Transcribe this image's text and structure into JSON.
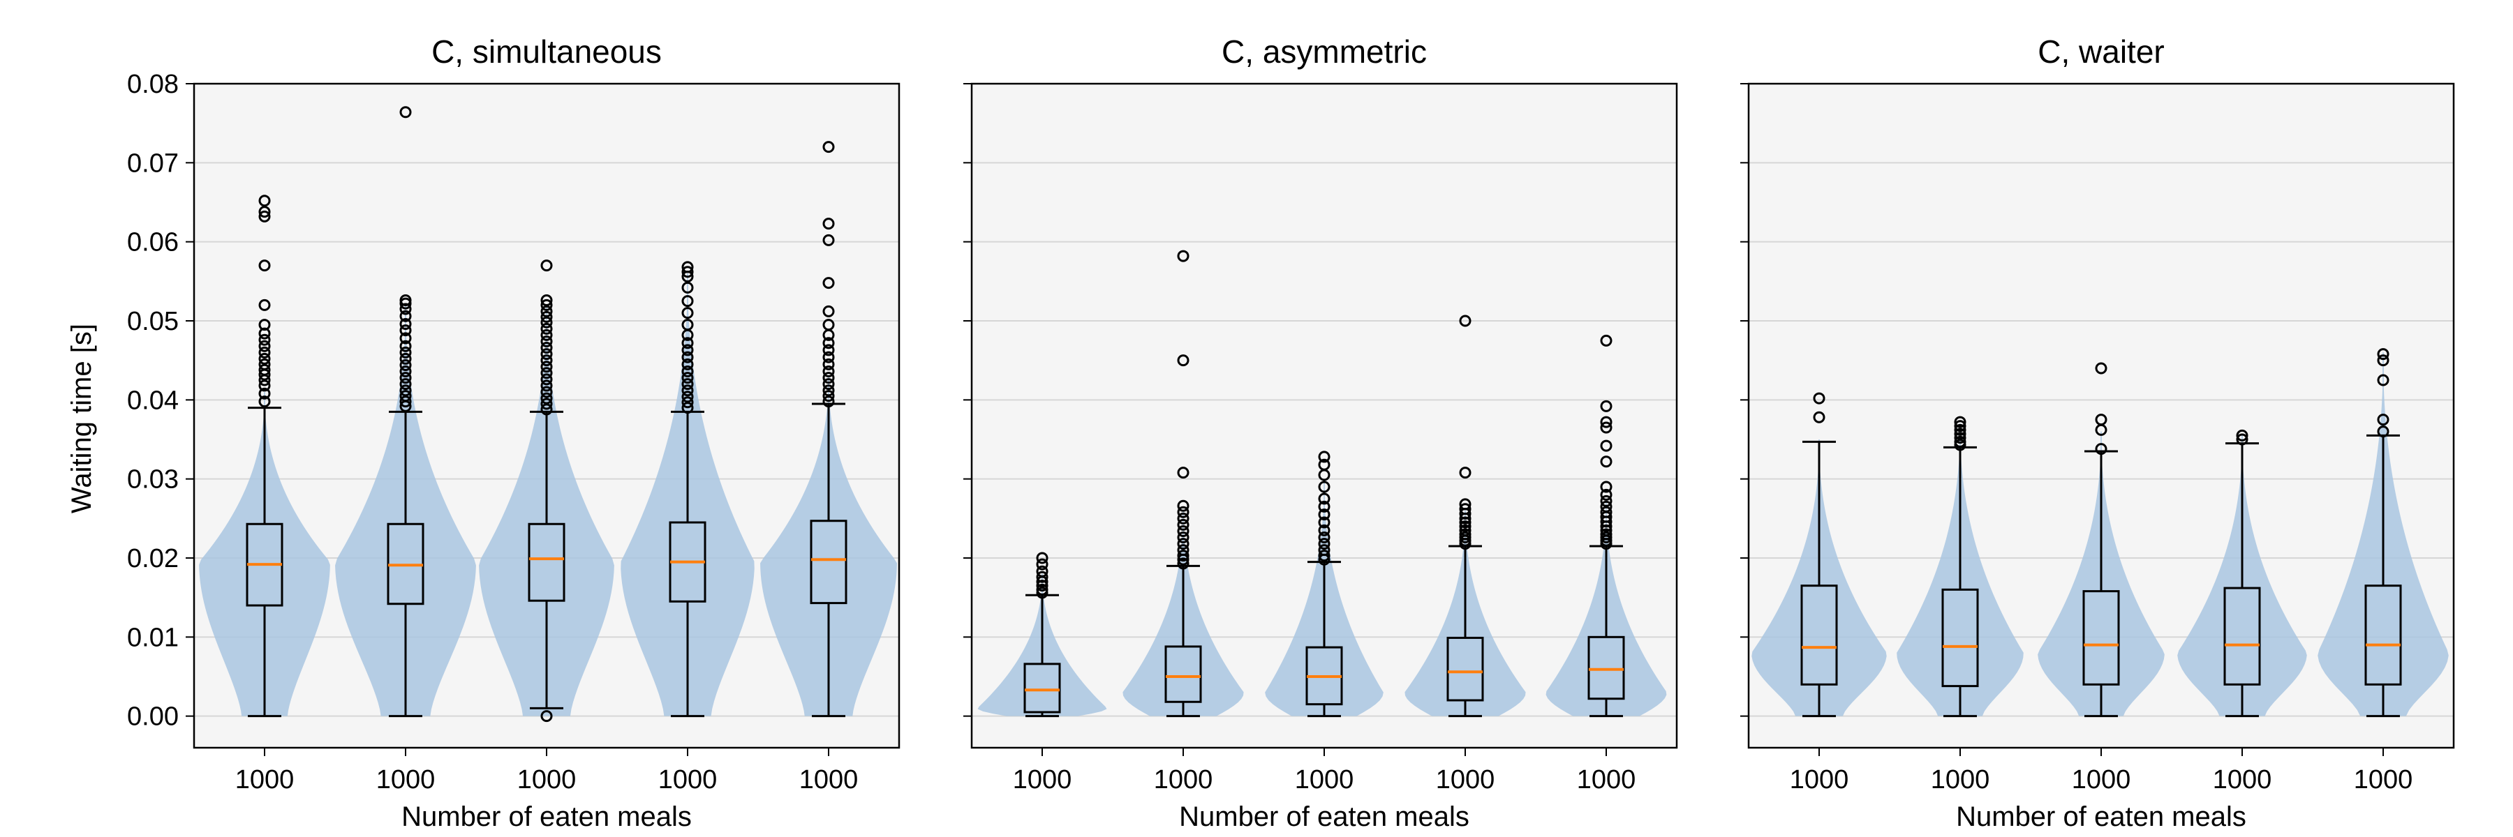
{
  "chart_data": [
    {
      "type": "violin+box",
      "title": "C, simultaneous",
      "xlabel": "Number of eaten meals",
      "ylabel": "Waiting time [s]",
      "ylim": [
        -0.004,
        0.08
      ],
      "yticks": [
        "0.00",
        "0.01",
        "0.02",
        "0.03",
        "0.04",
        "0.05",
        "0.06",
        "0.07",
        "0.08"
      ],
      "categories": [
        "1000",
        "1000",
        "1000",
        "1000",
        "1000"
      ],
      "grid": "horizontal",
      "colors": {
        "violin": "#a9c6e0",
        "box": "#000000",
        "median": "#ff7f0e",
        "background": "#f5f5f5"
      },
      "series": [
        {
          "q1": 0.014,
          "median": 0.0192,
          "q3": 0.0243,
          "whisker_low": 0.0,
          "whisker_high": 0.039,
          "outliers": [
            0.0398,
            0.0408,
            0.0418,
            0.0425,
            0.0432,
            0.0438,
            0.0445,
            0.0452,
            0.046,
            0.0468,
            0.0476,
            0.0484,
            0.0495,
            0.052,
            0.057,
            0.0632,
            0.0638,
            0.0652
          ],
          "violin": {
            "ymin": 0.0,
            "ymax": 0.041,
            "mode": 0.0195,
            "width": 0.93
          }
        },
        {
          "q1": 0.0142,
          "median": 0.0191,
          "q3": 0.0243,
          "whisker_low": 0.0,
          "whisker_high": 0.0385,
          "outliers": [
            0.0392,
            0.0398,
            0.0405,
            0.0412,
            0.042,
            0.0428,
            0.0436,
            0.0444,
            0.0452,
            0.046,
            0.0468,
            0.0478,
            0.0488,
            0.0496,
            0.0506,
            0.0515,
            0.0522,
            0.0526,
            0.0764
          ],
          "violin": {
            "ymin": 0.0,
            "ymax": 0.052,
            "mode": 0.0195,
            "width": 1.0
          }
        },
        {
          "q1": 0.0146,
          "median": 0.0199,
          "q3": 0.0243,
          "whisker_low": 0.001,
          "whisker_high": 0.0385,
          "outliers": [
            0.0,
            0.0388,
            0.0395,
            0.0402,
            0.041,
            0.0418,
            0.0426,
            0.0434,
            0.0442,
            0.045,
            0.0458,
            0.0466,
            0.0474,
            0.0482,
            0.049,
            0.0498,
            0.0505,
            0.0512,
            0.052,
            0.0526,
            0.057
          ],
          "violin": {
            "ymin": 0.0,
            "ymax": 0.052,
            "mode": 0.0195,
            "width": 0.96
          }
        },
        {
          "q1": 0.0145,
          "median": 0.0195,
          "q3": 0.0245,
          "whisker_low": 0.0,
          "whisker_high": 0.0385,
          "outliers": [
            0.039,
            0.0397,
            0.0404,
            0.0412,
            0.042,
            0.0428,
            0.0436,
            0.0445,
            0.0454,
            0.0463,
            0.0472,
            0.0482,
            0.0495,
            0.051,
            0.0525,
            0.0542,
            0.0556,
            0.0562,
            0.0568
          ],
          "violin": {
            "ymin": 0.0,
            "ymax": 0.056,
            "mode": 0.0195,
            "width": 0.95
          }
        },
        {
          "q1": 0.0143,
          "median": 0.0198,
          "q3": 0.0247,
          "whisker_low": 0.0,
          "whisker_high": 0.0395,
          "outliers": [
            0.0398,
            0.0405,
            0.0412,
            0.042,
            0.0428,
            0.0436,
            0.0445,
            0.0454,
            0.0463,
            0.0472,
            0.0482,
            0.0495,
            0.0512,
            0.0548,
            0.0602,
            0.0623,
            0.072
          ],
          "violin": {
            "ymin": 0.0,
            "ymax": 0.043,
            "mode": 0.0195,
            "width": 0.97
          }
        }
      ]
    },
    {
      "type": "violin+box",
      "title": "C, asymmetric",
      "xlabel": "Number of eaten meals",
      "ylabel": "",
      "ylim": [
        -0.004,
        0.08
      ],
      "categories": [
        "1000",
        "1000",
        "1000",
        "1000",
        "1000"
      ],
      "grid": "horizontal",
      "series": [
        {
          "q1": 0.0005,
          "median": 0.0033,
          "q3": 0.0066,
          "whisker_low": 0.0,
          "whisker_high": 0.0153,
          "outliers": [
            0.0156,
            0.016,
            0.0165,
            0.017,
            0.0176,
            0.0183,
            0.0192,
            0.02
          ],
          "violin": {
            "ymin": 0.0,
            "ymax": 0.018,
            "mode": 0.001,
            "width": 0.92
          }
        },
        {
          "q1": 0.0018,
          "median": 0.005,
          "q3": 0.0088,
          "whisker_low": 0.0,
          "whisker_high": 0.019,
          "outliers": [
            0.0193,
            0.0198,
            0.0203,
            0.021,
            0.0218,
            0.0226,
            0.0234,
            0.0242,
            0.025,
            0.0258,
            0.0266,
            0.0308,
            0.045,
            0.0582
          ],
          "violin": {
            "ymin": 0.0,
            "ymax": 0.026,
            "mode": 0.003,
            "width": 0.86
          }
        },
        {
          "q1": 0.0015,
          "median": 0.005,
          "q3": 0.0087,
          "whisker_low": 0.0,
          "whisker_high": 0.0195,
          "outliers": [
            0.0198,
            0.0203,
            0.021,
            0.0218,
            0.0226,
            0.0235,
            0.0245,
            0.0255,
            0.0265,
            0.0275,
            0.029,
            0.0305,
            0.0318,
            0.0328
          ],
          "violin": {
            "ymin": 0.0,
            "ymax": 0.03,
            "mode": 0.003,
            "width": 0.84
          }
        },
        {
          "q1": 0.002,
          "median": 0.0056,
          "q3": 0.0099,
          "whisker_low": 0.0,
          "whisker_high": 0.0215,
          "outliers": [
            0.0218,
            0.0222,
            0.0226,
            0.023,
            0.0235,
            0.024,
            0.0245,
            0.025,
            0.0256,
            0.0262,
            0.0268,
            0.0308,
            0.05
          ],
          "violin": {
            "ymin": 0.0,
            "ymax": 0.026,
            "mode": 0.003,
            "width": 0.86
          }
        },
        {
          "q1": 0.0022,
          "median": 0.0059,
          "q3": 0.01,
          "whisker_low": 0.0,
          "whisker_high": 0.0215,
          "outliers": [
            0.0218,
            0.0222,
            0.0226,
            0.023,
            0.0235,
            0.024,
            0.0246,
            0.0252,
            0.0258,
            0.0265,
            0.0272,
            0.028,
            0.029,
            0.0322,
            0.0342,
            0.0365,
            0.0372,
            0.0392,
            0.0475
          ],
          "violin": {
            "ymin": 0.0,
            "ymax": 0.027,
            "mode": 0.003,
            "width": 0.86
          }
        }
      ]
    },
    {
      "type": "violin+box",
      "title": "C, waiter",
      "xlabel": "Number of eaten meals",
      "ylabel": "",
      "ylim": [
        -0.004,
        0.08
      ],
      "categories": [
        "1000",
        "1000",
        "1000",
        "1000",
        "1000"
      ],
      "grid": "horizontal",
      "series": [
        {
          "q1": 0.004,
          "median": 0.0087,
          "q3": 0.0165,
          "whisker_low": 0.0,
          "whisker_high": 0.0347,
          "outliers": [
            0.0378,
            0.0402
          ],
          "violin": {
            "ymin": 0.0,
            "ymax": 0.035,
            "mode": 0.008,
            "width": 0.96
          }
        },
        {
          "q1": 0.0038,
          "median": 0.0088,
          "q3": 0.016,
          "whisker_low": 0.0,
          "whisker_high": 0.034,
          "outliers": [
            0.0343,
            0.0347,
            0.0352,
            0.0357,
            0.0362,
            0.0367,
            0.0372
          ],
          "violin": {
            "ymin": 0.0,
            "ymax": 0.037,
            "mode": 0.008,
            "width": 0.9
          }
        },
        {
          "q1": 0.004,
          "median": 0.009,
          "q3": 0.0158,
          "whisker_low": 0.0,
          "whisker_high": 0.0335,
          "outliers": [
            0.0338,
            0.0362,
            0.0375,
            0.044
          ],
          "violin": {
            "ymin": 0.0,
            "ymax": 0.036,
            "mode": 0.008,
            "width": 0.9
          }
        },
        {
          "q1": 0.004,
          "median": 0.009,
          "q3": 0.0162,
          "whisker_low": 0.0,
          "whisker_high": 0.0345,
          "outliers": [
            0.035,
            0.0355
          ],
          "violin": {
            "ymin": 0.0,
            "ymax": 0.0355,
            "mode": 0.008,
            "width": 0.92
          }
        },
        {
          "q1": 0.004,
          "median": 0.009,
          "q3": 0.0165,
          "whisker_low": 0.0,
          "whisker_high": 0.0355,
          "outliers": [
            0.036,
            0.0375,
            0.0425,
            0.045,
            0.0458
          ],
          "violin": {
            "ymin": 0.0,
            "ymax": 0.046,
            "mode": 0.008,
            "width": 0.93
          }
        }
      ]
    }
  ]
}
